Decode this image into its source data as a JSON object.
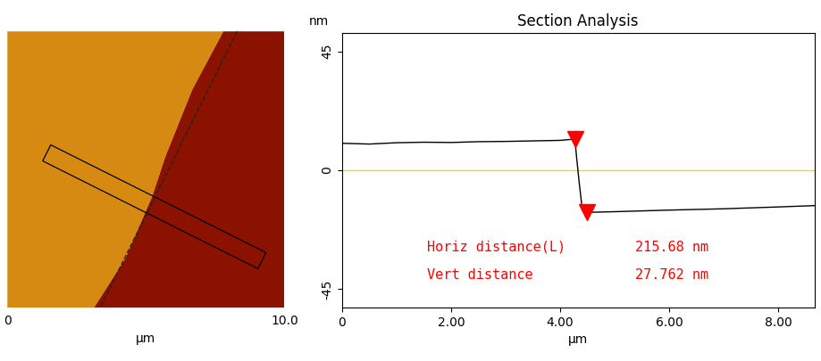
{
  "chart_data": [
    {
      "type": "image",
      "xlim": [
        0,
        10
      ],
      "ylim": [
        0,
        10
      ],
      "xticks": [
        0,
        {
          "value": 10,
          "label": "10.0"
        }
      ],
      "xlabel": "μm",
      "tick_labels": "x",
      "colors": [
        "#d68a12",
        "#8c1200"
      ],
      "boundary": {
        "x": [
          7.8,
          6.68,
          5.71,
          5.23,
          4.26,
          3.13
        ],
        "y": [
          10,
          7.9,
          5.48,
          4.03,
          1.77,
          0
        ]
      },
      "fit_line": {
        "x": [
          8.29,
          3.35
        ],
        "y": [
          10,
          0
        ],
        "color": "#222222",
        "line_style": "dashed"
      },
      "section": {
        "start": [
          1.42,
          5.6
        ],
        "end": [
          9.19,
          1.7
        ],
        "width": 0.65,
        "color": "#000000"
      }
    },
    {
      "type": "line",
      "title": "Section Analysis",
      "ylabel": "nm",
      "xlabel": "μm",
      "x": [
        0,
        0.5,
        1,
        1.5,
        2,
        2.5,
        3,
        3.5,
        4,
        4.27,
        4.3,
        4.35,
        4.4,
        4.4857,
        5,
        6,
        7,
        8,
        8.66
      ],
      "values": [
        10.2,
        9.9,
        10.4,
        10.6,
        10.5,
        10.8,
        10.9,
        11.1,
        11.3,
        11.8,
        5,
        -5,
        -14,
        -15.962,
        -15.7,
        -15.1,
        -14.6,
        -13.9,
        -13.4
      ],
      "color": "#000000",
      "xlim": [
        0,
        8.66
      ],
      "ylim": [
        -52,
        52
      ],
      "xticks": [
        0,
        {
          "value": 2,
          "label": "2.00"
        },
        {
          "value": 4,
          "label": "4.00"
        },
        {
          "value": 6,
          "label": "6.00"
        },
        {
          "value": 8,
          "label": "8.00"
        }
      ],
      "yticks": [
        -45,
        0,
        45
      ],
      "reference_y": 0,
      "reference_color": "#e8e000",
      "markers": {
        "x": [
          4.27,
          4.4857
        ],
        "y": [
          11.8,
          -15.962
        ],
        "color": "#ff0000",
        "marker": "v"
      },
      "measurements": [
        {
          "label": "Horiz distance(L)",
          "value": 215.68,
          "value_label": "215.68 nm"
        },
        {
          "label": "Vert distance",
          "value": 27.762,
          "value_label": "27.762 nm"
        }
      ],
      "measurement_color": "#ff0000"
    }
  ]
}
